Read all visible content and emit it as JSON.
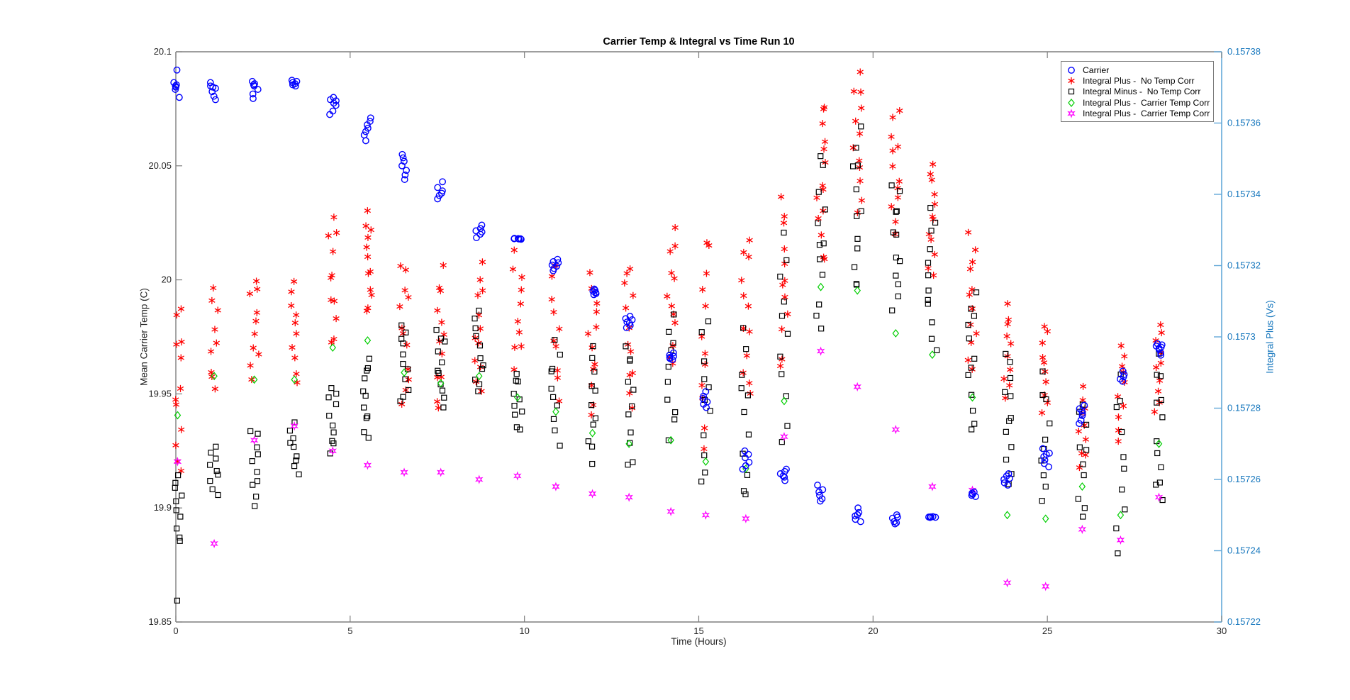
{
  "figure": {
    "title": "Carrier Temp & Integral vs Time Run 10"
  },
  "chart_data": {
    "type": "scatter",
    "title": "Carrier Temp & Integral vs Time Run 10",
    "xlabel": "Time (Hours)",
    "ylabel_left": "Mean Carrier Temp (C)",
    "ylabel_right": "Integral Plus (Vs)",
    "xlim": [
      0,
      30
    ],
    "xticks": {
      "values": [
        0,
        5,
        10,
        15,
        20,
        25,
        30
      ],
      "labels": [
        "0",
        "5",
        "10",
        "15",
        "20",
        "25",
        "30"
      ]
    },
    "ylim_left": [
      19.85,
      20.1
    ],
    "yticks_left": {
      "values": [
        19.85,
        19.9,
        19.95,
        20.0,
        20.05,
        20.1
      ],
      "labels": [
        "19.85",
        "19.9",
        "19.95",
        "20",
        "20.05",
        "20.1"
      ]
    },
    "ylim_right": [
      0.15722,
      0.15738
    ],
    "yticks_right": {
      "values": [
        0.15722,
        0.15724,
        0.15726,
        0.15728,
        0.1573,
        0.15732,
        0.15734,
        0.15736,
        0.15738
      ],
      "labels": [
        "0.15722",
        "0.15724",
        "0.15726",
        "0.15728",
        "0.1573",
        "0.15732",
        "0.15734",
        "0.15736",
        "0.15738"
      ]
    },
    "grid": false,
    "legend_position": "top-right",
    "colors": {
      "axis_gray": "#7F7F7F",
      "tick_text": "#262626",
      "right_axis_line": "#63A8D8",
      "right_axis_text": "#1878BE"
    },
    "series": [
      {
        "name": "Carrier",
        "marker": "circle",
        "color": "#0000FF",
        "axis": "left",
        "clusters": [
          {
            "t": 0.05,
            "values": [
              20.092,
              20.0865,
              20.0855,
              20.085,
              20.0845,
              20.0835,
              20.08
            ]
          },
          {
            "t": 1.1,
            "values": [
              20.0865,
              20.085,
              20.0845,
              20.084,
              20.0825,
              20.0805,
              20.079
            ]
          },
          {
            "t": 2.25,
            "values": [
              20.087,
              20.086,
              20.0855,
              20.085,
              20.0835,
              20.0815,
              20.0795
            ]
          },
          {
            "t": 3.4,
            "values": [
              20.0875,
              20.087,
              20.0865,
              20.086,
              20.0855,
              20.085
            ]
          },
          {
            "t": 4.5,
            "values": [
              20.08,
              20.079,
              20.0785,
              20.0775,
              20.0765,
              20.074,
              20.0725
            ]
          },
          {
            "t": 5.5,
            "values": [
              20.071,
              20.0695,
              20.068,
              20.0665,
              20.065,
              20.0635,
              20.061
            ]
          },
          {
            "t": 6.55,
            "values": [
              20.055,
              20.0535,
              20.052,
              20.05,
              20.048,
              20.046,
              20.044
            ]
          },
          {
            "t": 7.6,
            "values": [
              20.043,
              20.0405,
              20.039,
              20.038,
              20.037,
              20.0355
            ]
          },
          {
            "t": 8.7,
            "values": [
              20.024,
              20.0225,
              20.0215,
              20.021,
              20.02,
              20.0185
            ]
          },
          {
            "t": 9.8,
            "values": [
              20.018,
              20.0181,
              20.0179,
              20.018,
              20.0178,
              20.0182
            ]
          },
          {
            "t": 10.9,
            "values": [
              20.009,
              20.008,
              20.0075,
              20.0065,
              20.006,
              20.005,
              20.004
            ]
          },
          {
            "t": 11.95,
            "values": [
              19.996,
              19.9955,
              19.995,
              19.9945,
              19.994,
              19.9935
            ]
          },
          {
            "t": 13.0,
            "values": [
              19.984,
              19.983,
              19.9825,
              19.9815,
              19.981,
              19.98,
              19.979
            ]
          },
          {
            "t": 14.2,
            "values": [
              19.968,
              19.967,
              19.9665,
              19.966,
              19.9655,
              19.965
            ]
          },
          {
            "t": 15.2,
            "values": [
              19.951,
              19.949,
              19.948,
              19.9465,
              19.9455,
              19.944
            ]
          },
          {
            "t": 16.35,
            "values": [
              19.925,
              19.9235,
              19.922,
              19.92,
              19.9185,
              19.917
            ]
          },
          {
            "t": 17.45,
            "values": [
              19.917,
              19.916,
              19.915,
              19.914,
              19.9135,
              19.912
            ]
          },
          {
            "t": 18.5,
            "values": [
              19.91,
              19.908,
              19.907,
              19.9055,
              19.904,
              19.903
            ]
          },
          {
            "t": 19.55,
            "values": [
              19.9,
              19.898,
              19.897,
              19.8965,
              19.895,
              19.894
            ]
          },
          {
            "t": 20.65,
            "values": [
              19.897,
              19.896,
              19.8955,
              19.894,
              19.8935,
              19.893
            ]
          },
          {
            "t": 21.7,
            "values": [
              19.8962,
              19.896,
              19.8961,
              19.8959,
              19.896,
              19.8958
            ]
          },
          {
            "t": 22.85,
            "values": [
              19.907,
              19.9065,
              19.906,
              19.9055,
              19.905
            ]
          },
          {
            "t": 23.85,
            "values": [
              19.915,
              19.914,
              19.913,
              19.9125,
              19.911,
              19.91
            ]
          },
          {
            "t": 24.95,
            "values": [
              19.926,
              19.924,
              19.9235,
              19.9225,
              19.921,
              19.9195,
              19.918
            ]
          },
          {
            "t": 26.0,
            "values": [
              19.945,
              19.9435,
              19.9425,
              19.9415,
              19.9405,
              19.9385,
              19.937
            ]
          },
          {
            "t": 27.1,
            "values": [
              19.96,
              19.9585,
              19.9575,
              19.9565,
              19.9555
            ]
          },
          {
            "t": 28.2,
            "values": [
              19.972,
              19.9715,
              19.971,
              19.9705,
              19.97,
              19.9695,
              19.968,
              19.967
            ]
          }
        ]
      },
      {
        "name": "Integral Plus -  No Temp Corr",
        "marker": "asterisk",
        "color": "#FF0000",
        "axis": "right",
        "clusters": [
          {
            "t": 0.05,
            "lo": 0.157261,
            "hi": 0.15731,
            "n": 12
          },
          {
            "t": 1.1,
            "lo": 0.157283,
            "hi": 0.157315,
            "n": 9
          },
          {
            "t": 2.25,
            "lo": 0.157287,
            "hi": 0.157318,
            "n": 10
          },
          {
            "t": 3.4,
            "lo": 0.157286,
            "hi": 0.157317,
            "n": 10
          },
          {
            "t": 4.5,
            "lo": 0.157296,
            "hi": 0.157335,
            "n": 11
          },
          {
            "t": 5.5,
            "lo": 0.157306,
            "hi": 0.157336,
            "n": 12
          },
          {
            "t": 6.55,
            "lo": 0.157281,
            "hi": 0.157322,
            "n": 12
          },
          {
            "t": 7.6,
            "lo": 0.157279,
            "hi": 0.15732,
            "n": 12
          },
          {
            "t": 8.7,
            "lo": 0.157283,
            "hi": 0.157322,
            "n": 12
          },
          {
            "t": 9.8,
            "lo": 0.157291,
            "hi": 0.157324,
            "n": 10
          },
          {
            "t": 10.9,
            "lo": 0.157282,
            "hi": 0.157322,
            "n": 10
          },
          {
            "t": 11.95,
            "lo": 0.157277,
            "hi": 0.15732,
            "n": 12
          },
          {
            "t": 13.0,
            "lo": 0.157279,
            "hi": 0.157322,
            "n": 12
          },
          {
            "t": 14.2,
            "lo": 0.157291,
            "hi": 0.15733,
            "n": 12
          },
          {
            "t": 15.2,
            "lo": 0.157268,
            "hi": 0.15733,
            "n": 12
          },
          {
            "t": 16.35,
            "lo": 0.157281,
            "hi": 0.15733,
            "n": 12
          },
          {
            "t": 17.45,
            "lo": 0.15729,
            "hi": 0.157342,
            "n": 12
          },
          {
            "t": 18.5,
            "lo": 0.157319,
            "hi": 0.157367,
            "n": 14
          },
          {
            "t": 19.55,
            "lo": 0.157334,
            "hi": 0.157375,
            "n": 12
          },
          {
            "t": 20.65,
            "lo": 0.157329,
            "hi": 0.157364,
            "n": 12
          },
          {
            "t": 21.7,
            "lo": 0.157317,
            "hi": 0.157349,
            "n": 12
          },
          {
            "t": 22.85,
            "lo": 0.157291,
            "hi": 0.157329,
            "n": 12
          },
          {
            "t": 23.85,
            "lo": 0.157283,
            "hi": 0.157309,
            "n": 10
          },
          {
            "t": 24.95,
            "lo": 0.157277,
            "hi": 0.157305,
            "n": 10
          },
          {
            "t": 26.0,
            "lo": 0.157263,
            "hi": 0.157286,
            "n": 10
          },
          {
            "t": 27.1,
            "lo": 0.157271,
            "hi": 0.157299,
            "n": 10
          },
          {
            "t": 28.2,
            "lo": 0.157279,
            "hi": 0.157305,
            "n": 10
          }
        ]
      },
      {
        "name": "Integral Minus -  No Temp Corr",
        "marker": "square",
        "color": "#000000",
        "axis": "right",
        "clusters": [
          {
            "t": 0.05,
            "lo": 0.157242,
            "hi": 0.157262,
            "n": 10,
            "extra": [
              0.157226
            ]
          },
          {
            "t": 1.1,
            "lo": 0.157255,
            "hi": 0.15727,
            "n": 9
          },
          {
            "t": 2.25,
            "lo": 0.157252,
            "hi": 0.157275,
            "n": 10
          },
          {
            "t": 3.4,
            "lo": 0.157261,
            "hi": 0.157276,
            "n": 9
          },
          {
            "t": 4.5,
            "lo": 0.157267,
            "hi": 0.157287,
            "n": 10
          },
          {
            "t": 5.5,
            "lo": 0.157271,
            "hi": 0.157295,
            "n": 11
          },
          {
            "t": 6.55,
            "lo": 0.157281,
            "hi": 0.157305,
            "n": 11
          },
          {
            "t": 7.6,
            "lo": 0.157279,
            "hi": 0.157303,
            "n": 11
          },
          {
            "t": 8.7,
            "lo": 0.157283,
            "hi": 0.157307,
            "n": 11
          },
          {
            "t": 9.8,
            "lo": 0.157273,
            "hi": 0.157291,
            "n": 10
          },
          {
            "t": 10.9,
            "lo": 0.157269,
            "hi": 0.1573,
            "n": 10
          },
          {
            "t": 11.95,
            "lo": 0.157264,
            "hi": 0.157297,
            "n": 11
          },
          {
            "t": 13.0,
            "lo": 0.157262,
            "hi": 0.1573,
            "n": 11
          },
          {
            "t": 14.2,
            "lo": 0.15727,
            "hi": 0.157308,
            "n": 10
          },
          {
            "t": 15.2,
            "lo": 0.157258,
            "hi": 0.157305,
            "n": 11
          },
          {
            "t": 16.35,
            "lo": 0.157252,
            "hi": 0.157302,
            "n": 11
          },
          {
            "t": 17.45,
            "lo": 0.15727,
            "hi": 0.15733,
            "n": 11
          },
          {
            "t": 18.5,
            "lo": 0.157301,
            "hi": 0.157352,
            "n": 12
          },
          {
            "t": 19.55,
            "lo": 0.157311,
            "hi": 0.15736,
            "n": 12
          },
          {
            "t": 20.65,
            "lo": 0.157305,
            "hi": 0.157345,
            "n": 12
          },
          {
            "t": 21.7,
            "lo": 0.157296,
            "hi": 0.157337,
            "n": 12
          },
          {
            "t": 22.85,
            "lo": 0.157272,
            "hi": 0.157315,
            "n": 12
          },
          {
            "t": 23.85,
            "lo": 0.157258,
            "hi": 0.157297,
            "n": 12
          },
          {
            "t": 24.95,
            "lo": 0.157252,
            "hi": 0.15729,
            "n": 10
          },
          {
            "t": 26.0,
            "lo": 0.157248,
            "hi": 0.157282,
            "n": 10
          },
          {
            "t": 27.1,
            "lo": 0.15724,
            "hi": 0.15729,
            "n": 10
          },
          {
            "t": 28.2,
            "lo": 0.157252,
            "hi": 0.157296,
            "n": 12
          }
        ]
      },
      {
        "name": "Integral Plus -  Carrier Temp Corr",
        "marker": "diamond",
        "color": "#00CF00",
        "axis": "right",
        "points": [
          [
            0.05,
            0.157278
          ],
          [
            1.1,
            0.157289
          ],
          [
            2.25,
            0.157288
          ],
          [
            3.4,
            0.157288
          ],
          [
            4.5,
            0.157297
          ],
          [
            5.5,
            0.157299
          ],
          [
            6.55,
            0.15729
          ],
          [
            7.6,
            0.157287
          ],
          [
            8.7,
            0.157289
          ],
          [
            9.8,
            0.157283
          ],
          [
            10.9,
            0.157279
          ],
          [
            11.95,
            0.157273
          ],
          [
            13.0,
            0.15727
          ],
          [
            14.2,
            0.157271
          ],
          [
            15.2,
            0.157265
          ],
          [
            16.35,
            0.157263
          ],
          [
            17.45,
            0.157282
          ],
          [
            18.5,
            0.157314
          ],
          [
            19.55,
            0.157313
          ],
          [
            20.65,
            0.157301
          ],
          [
            21.7,
            0.157295
          ],
          [
            22.85,
            0.157283
          ],
          [
            23.85,
            0.15725
          ],
          [
            24.95,
            0.157249
          ],
          [
            26.0,
            0.157258
          ],
          [
            27.1,
            0.15725
          ],
          [
            28.2,
            0.15727
          ]
        ]
      },
      {
        "name": "Integral Plus -  Carrier Temp Corr",
        "marker": "star",
        "color": "#FF00FF",
        "axis": "right",
        "points": [
          [
            0.05,
            0.157265
          ],
          [
            1.1,
            0.157242
          ],
          [
            2.25,
            0.157271
          ],
          [
            3.4,
            0.157275
          ],
          [
            4.5,
            0.157268
          ],
          [
            5.5,
            0.157264
          ],
          [
            6.55,
            0.157262
          ],
          [
            7.6,
            0.157262
          ],
          [
            8.7,
            0.15726
          ],
          [
            9.8,
            0.157261
          ],
          [
            10.9,
            0.157258
          ],
          [
            11.95,
            0.157256
          ],
          [
            13.0,
            0.157255
          ],
          [
            14.2,
            0.157251
          ],
          [
            15.2,
            0.15725
          ],
          [
            16.35,
            0.157249
          ],
          [
            17.45,
            0.157272
          ],
          [
            18.5,
            0.157296
          ],
          [
            19.55,
            0.157286
          ],
          [
            20.65,
            0.157274
          ],
          [
            21.7,
            0.157258
          ],
          [
            22.85,
            0.157257
          ],
          [
            23.85,
            0.157231
          ],
          [
            24.95,
            0.15723
          ],
          [
            26.0,
            0.157246
          ],
          [
            27.1,
            0.157243
          ],
          [
            28.2,
            0.157255
          ]
        ]
      }
    ]
  }
}
